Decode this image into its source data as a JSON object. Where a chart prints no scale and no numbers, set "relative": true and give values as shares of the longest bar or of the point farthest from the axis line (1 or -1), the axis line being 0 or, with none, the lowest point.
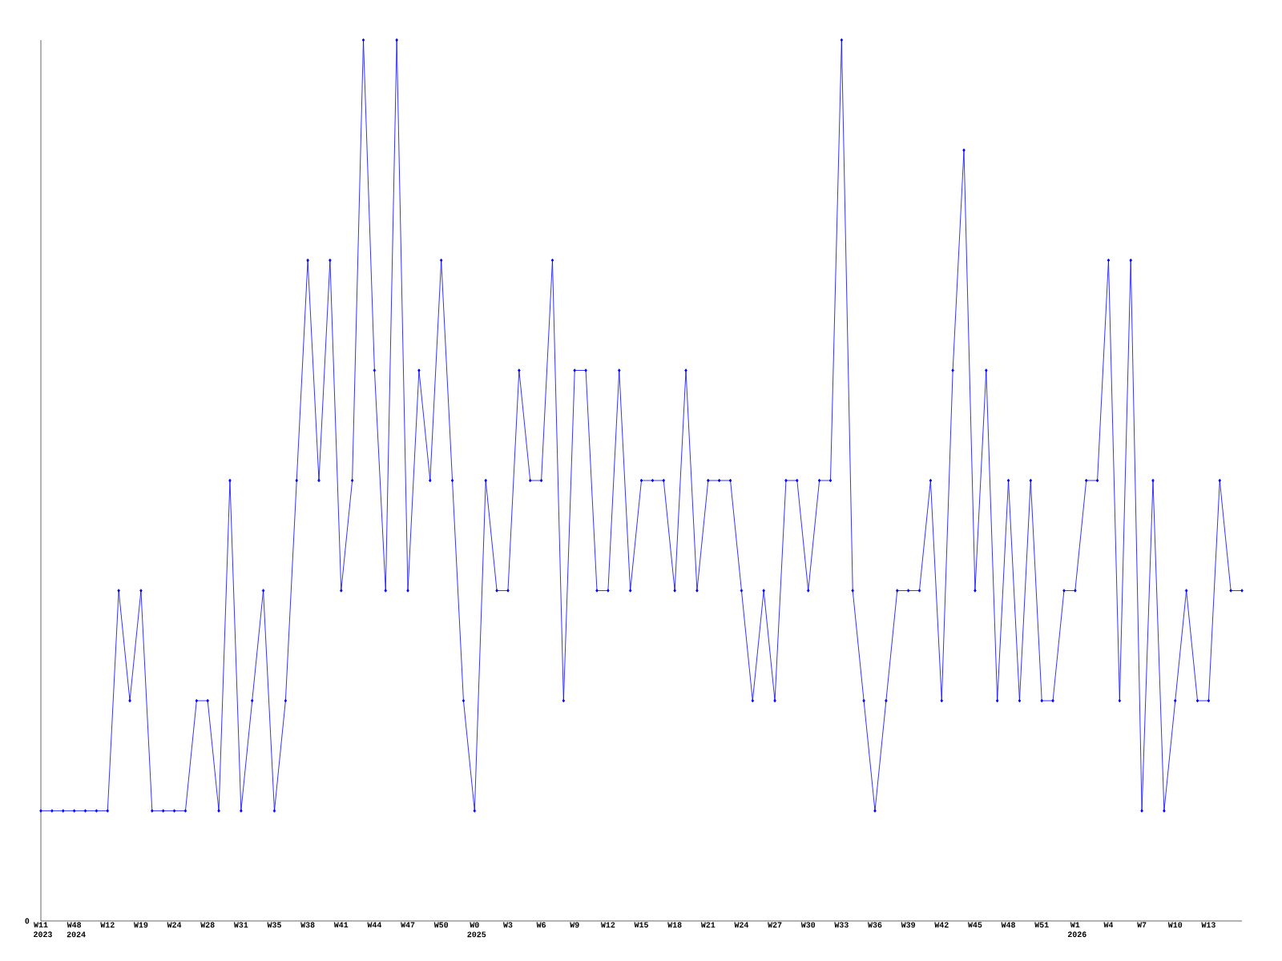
{
  "chart_data": {
    "type": "line",
    "relative": true,
    "color": "#0000ff",
    "marker": "diamond",
    "line_style": "solid",
    "categories": [
      "W11 2023",
      null,
      null,
      "W48 2024",
      null,
      null,
      "W12",
      null,
      null,
      "W19",
      null,
      null,
      "W24",
      null,
      null,
      "W28",
      null,
      null,
      "W31",
      null,
      null,
      "W35",
      null,
      null,
      "W38",
      null,
      null,
      "W41",
      null,
      null,
      "W44",
      null,
      null,
      "W47",
      null,
      null,
      "W50",
      null,
      null,
      "W0 2025",
      null,
      null,
      "W3",
      null,
      null,
      "W6",
      null,
      null,
      "W9",
      null,
      null,
      "W12",
      null,
      null,
      "W15",
      null,
      null,
      "W18",
      null,
      null,
      "W21",
      null,
      null,
      "W24",
      null,
      null,
      "W27",
      null,
      null,
      "W30",
      null,
      null,
      "W33",
      null,
      null,
      "W36",
      null,
      null,
      "W39",
      null,
      null,
      "W42",
      null,
      null,
      "W45",
      null,
      null,
      "W48",
      null,
      null,
      "W51",
      null,
      null,
      "W1 2026",
      null,
      null,
      "W4",
      null,
      null,
      "W7",
      null,
      null,
      "W10",
      null,
      null,
      "W13",
      null,
      null,
      null
    ],
    "values": [
      0.125,
      0.125,
      0.125,
      0.125,
      0.125,
      0.125,
      0.125,
      0.375,
      0.25,
      0.375,
      0.125,
      0.125,
      0.125,
      0.125,
      0.25,
      0.25,
      0.125,
      0.5,
      0.125,
      0.25,
      0.375,
      0.125,
      0.25,
      0.5,
      0.75,
      0.5,
      0.75,
      0.375,
      0.5,
      1,
      0.625,
      0.375,
      1,
      0.375,
      0.625,
      0.5,
      0.75,
      0.5,
      0.25,
      0.125,
      0.5,
      0.375,
      0.375,
      0.625,
      0.5,
      0.5,
      0.75,
      0.25,
      0.625,
      0.625,
      0.375,
      0.375,
      0.625,
      0.375,
      0.5,
      0.5,
      0.5,
      0.375,
      0.625,
      0.375,
      0.5,
      0.5,
      0.5,
      0.375,
      0.25,
      0.375,
      0.25,
      0.5,
      0.5,
      0.375,
      0.5,
      0.5,
      1,
      0.375,
      0.25,
      0.125,
      0.25,
      0.375,
      0.375,
      0.375,
      0.5,
      0.25,
      0.625,
      0.875,
      0.375,
      0.625,
      0.25,
      0.5,
      0.25,
      0.5,
      0.25,
      0.25,
      0.375,
      0.375,
      0.5,
      0.5,
      0.75,
      0.25,
      0.75,
      0.125,
      0.5,
      0.125,
      0.25,
      0.375,
      0.25,
      0.25,
      0.5,
      0.375,
      0.375
    ],
    "annotations": [
      "0"
    ]
  }
}
